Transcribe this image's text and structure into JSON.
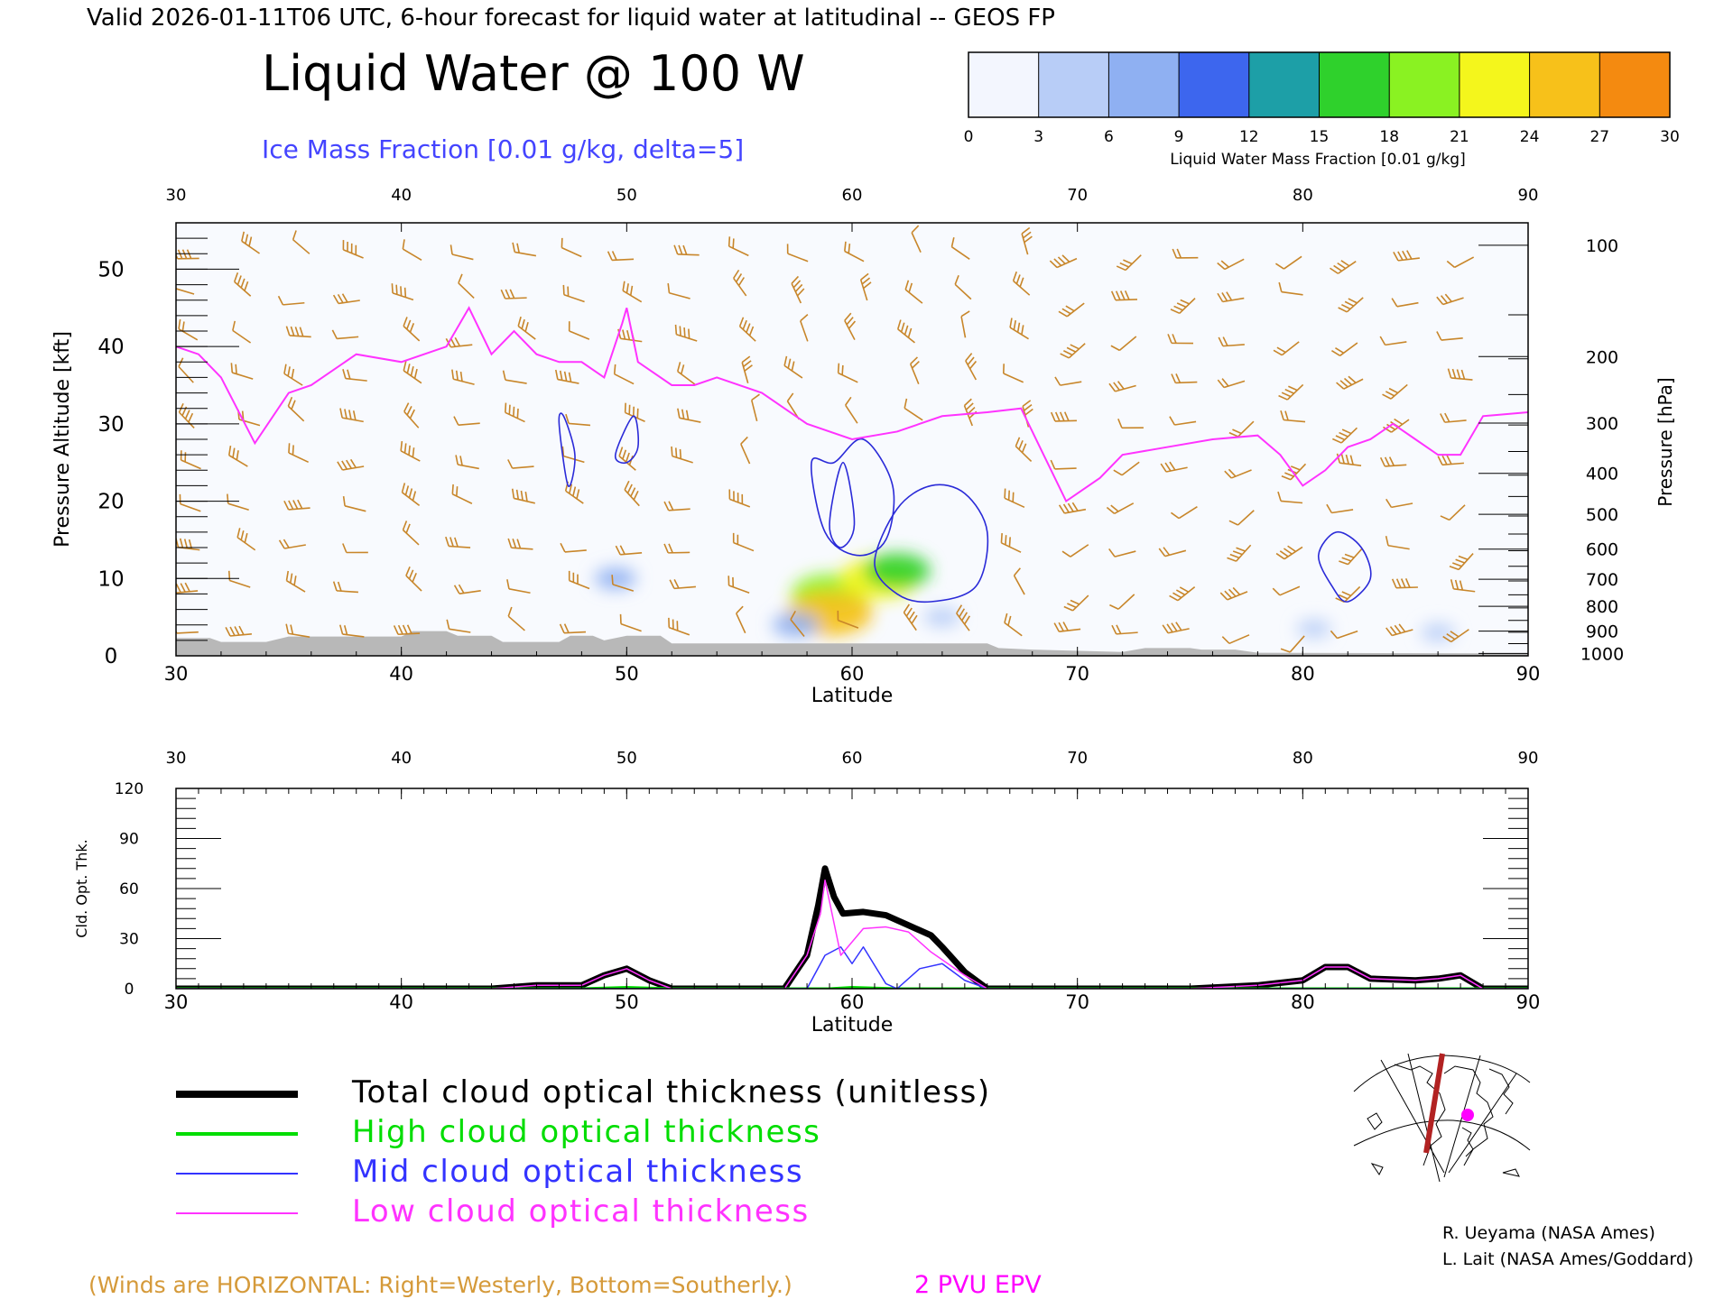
{
  "header": {
    "valid_line": "Valid 2026-01-11T06 UTC, 6-hour forecast for liquid water at latitudinal -- GEOS FP",
    "title": "Liquid Water @ 100 W",
    "subtitle": "Ice Mass Fraction [0.01 g/kg, delta=5]"
  },
  "colorbar": {
    "ticks": [
      "0",
      "3",
      "6",
      "9",
      "12",
      "15",
      "18",
      "21",
      "24",
      "27",
      "30"
    ],
    "label": "Liquid Water Mass Fraction [0.01 g/kg]",
    "colors": [
      "#f3f6fe",
      "#b8cdf7",
      "#8fb0f2",
      "#3d66ee",
      "#1d9fa7",
      "#2fd12c",
      "#8af222",
      "#f4f61c",
      "#f7c11a",
      "#f48a10",
      "#f03a0e"
    ]
  },
  "credits": {
    "line1": "R. Ueyama (NASA Ames)",
    "line2": "L. Lait (NASA Ames/Goddard)"
  },
  "footer": {
    "winds_note": "(Winds are HORIZONTAL: Right=Westerly, Bottom=Southerly.)",
    "epv_label": "2 PVU EPV",
    "winds_color": "#d59a3a",
    "epv_color": "#ff00ff"
  },
  "legend": [
    {
      "label": "Total cloud optical thickness (unitless)",
      "color": "#000000"
    },
    {
      "label": "High cloud optical thickness",
      "color": "#00dd00"
    },
    {
      "label": "Mid cloud optical thickness",
      "color": "#3333ff"
    },
    {
      "label": "Low cloud optical thickness",
      "color": "#ff33ff"
    }
  ],
  "chart_data": [
    {
      "type": "contour-cross-section",
      "xlabel": "Latitude",
      "ylabel": "Pressure Altitude [kft]",
      "right_label": "Pressure [hPa]",
      "xlim": [
        30,
        90
      ],
      "ylim": [
        0,
        56
      ],
      "x_ticks": [
        "30",
        "40",
        "50",
        "60",
        "70",
        "80",
        "90"
      ],
      "y_ticks": [
        "0",
        "10",
        "20",
        "30",
        "40",
        "50"
      ],
      "pressure_ticks": [
        {
          "label": "100",
          "kft": 53.1
        },
        {
          "label": "200",
          "kft": 38.7
        },
        {
          "label": "300",
          "kft": 30.1
        },
        {
          "label": "400",
          "kft": 23.6
        },
        {
          "label": "500",
          "kft": 18.3
        },
        {
          "label": "600",
          "kft": 13.8
        },
        {
          "label": "700",
          "kft": 9.9
        },
        {
          "label": "800",
          "kft": 6.4
        },
        {
          "label": "900",
          "kft": 3.2
        },
        {
          "label": "1000",
          "kft": 0.3
        }
      ],
      "epv_2pvu_line": [
        [
          30,
          40
        ],
        [
          31,
          39
        ],
        [
          32,
          36
        ],
        [
          33.5,
          27.5
        ],
        [
          35,
          34
        ],
        [
          36,
          35
        ],
        [
          38,
          39
        ],
        [
          40,
          38
        ],
        [
          42,
          40
        ],
        [
          43,
          45
        ],
        [
          44,
          39
        ],
        [
          45,
          42
        ],
        [
          46,
          39
        ],
        [
          47,
          38
        ],
        [
          48,
          38
        ],
        [
          49,
          36
        ],
        [
          49.8,
          43
        ],
        [
          50,
          45
        ],
        [
          50.5,
          38
        ],
        [
          52,
          35
        ],
        [
          53,
          35
        ],
        [
          54,
          36
        ],
        [
          56,
          34
        ],
        [
          58,
          30
        ],
        [
          60,
          28
        ],
        [
          62,
          29
        ],
        [
          64,
          31
        ],
        [
          66,
          31.5
        ],
        [
          67.5,
          32
        ],
        [
          68.5,
          26
        ],
        [
          69.5,
          20
        ],
        [
          71,
          23
        ],
        [
          72,
          26
        ],
        [
          74,
          27
        ],
        [
          76,
          28
        ],
        [
          78,
          28.5
        ],
        [
          79,
          26
        ],
        [
          80,
          22
        ],
        [
          81,
          24
        ],
        [
          82,
          27
        ],
        [
          83,
          28
        ],
        [
          84,
          30
        ],
        [
          85,
          28
        ],
        [
          86,
          26
        ],
        [
          87,
          26
        ],
        [
          88,
          31
        ],
        [
          90,
          31.5
        ]
      ],
      "ice_contours": [
        [
          [
            47,
            30
          ],
          [
            47.4,
            22
          ],
          [
            47.7,
            26
          ],
          [
            47.2,
            31
          ]
        ],
        [
          [
            49.5,
            26
          ],
          [
            50.3,
            31
          ],
          [
            50.5,
            27
          ],
          [
            50,
            25
          ]
        ],
        [
          [
            58.2,
            25
          ],
          [
            59.2,
            25
          ],
          [
            60.5,
            28
          ],
          [
            61.8,
            22
          ],
          [
            61.5,
            15
          ],
          [
            60.2,
            13
          ],
          [
            58.8,
            16
          ]
        ],
        [
          [
            59,
            17
          ],
          [
            59.6,
            25
          ],
          [
            60.1,
            17
          ],
          [
            59.5,
            14
          ]
        ],
        [
          [
            62,
            19
          ],
          [
            63.5,
            22
          ],
          [
            65,
            21
          ],
          [
            66,
            16
          ],
          [
            65.5,
            9
          ],
          [
            63.5,
            7
          ],
          [
            62,
            8
          ],
          [
            61,
            12
          ]
        ],
        [
          [
            80.7,
            13
          ],
          [
            81.5,
            16
          ],
          [
            82.6,
            14
          ],
          [
            83,
            10
          ],
          [
            82,
            7
          ],
          [
            81.3,
            9
          ]
        ]
      ],
      "liquid_water_blobs": [
        {
          "lat": 59.0,
          "kft": 8.0,
          "value": 20
        },
        {
          "lat": 59.0,
          "kft": 5.5,
          "value": 24
        },
        {
          "lat": 61.2,
          "kft": 10.0,
          "value": 21
        },
        {
          "lat": 62.0,
          "kft": 11.0,
          "value": 16
        },
        {
          "lat": 57.5,
          "kft": 4.0,
          "value": 8
        },
        {
          "lat": 49.5,
          "kft": 10.0,
          "value": 6
        },
        {
          "lat": 64.0,
          "kft": 5.0,
          "value": 4
        },
        {
          "lat": 80.5,
          "kft": 3.5,
          "value": 3
        },
        {
          "lat": 86.0,
          "kft": 3.0,
          "value": 3
        }
      ]
    },
    {
      "type": "line",
      "xlabel": "Latitude",
      "ylabel": "Cld. Opt. Thk.",
      "xlim": [
        30,
        90
      ],
      "ylim": [
        0,
        120
      ],
      "x_ticks": [
        "30",
        "40",
        "50",
        "60",
        "70",
        "80",
        "90"
      ],
      "y_ticks": [
        "0",
        "30",
        "60",
        "90",
        "120"
      ],
      "series": [
        {
          "name": "Total cloud optical thickness (unitless)",
          "color": "#000000",
          "points": [
            [
              30,
              0
            ],
            [
              44,
              0
            ],
            [
              46,
              2
            ],
            [
              48,
              2
            ],
            [
              49,
              8
            ],
            [
              50,
              12
            ],
            [
              51,
              5
            ],
            [
              52,
              0
            ],
            [
              57,
              0
            ],
            [
              58,
              20
            ],
            [
              58.5,
              50
            ],
            [
              58.8,
              72
            ],
            [
              59.2,
              55
            ],
            [
              59.6,
              45
            ],
            [
              60.5,
              46
            ],
            [
              61.5,
              44
            ],
            [
              62.5,
              38
            ],
            [
              63.5,
              32
            ],
            [
              64,
              25
            ],
            [
              65,
              10
            ],
            [
              66,
              0
            ],
            [
              75,
              0
            ],
            [
              78,
              2
            ],
            [
              80,
              5
            ],
            [
              81,
              13
            ],
            [
              82,
              13
            ],
            [
              83,
              6
            ],
            [
              85,
              5
            ],
            [
              86,
              6
            ],
            [
              87,
              8
            ],
            [
              88,
              0
            ],
            [
              90,
              0
            ]
          ]
        },
        {
          "name": "High cloud optical thickness",
          "color": "#00dd00",
          "points": [
            [
              30,
              0
            ],
            [
              48,
              0
            ],
            [
              50,
              0.8
            ],
            [
              52,
              0
            ],
            [
              59,
              0
            ],
            [
              60,
              0.8
            ],
            [
              62,
              0
            ],
            [
              90,
              0
            ]
          ]
        },
        {
          "name": "Mid cloud optical thickness",
          "color": "#3333ff",
          "points": [
            [
              30,
              0
            ],
            [
              58,
              0
            ],
            [
              58.8,
              20
            ],
            [
              59.5,
              25
            ],
            [
              60,
              15
            ],
            [
              60.5,
              25
            ],
            [
              61.5,
              3
            ],
            [
              62,
              0
            ],
            [
              63,
              12
            ],
            [
              64,
              15
            ],
            [
              65,
              5
            ],
            [
              66,
              0
            ],
            [
              90,
              0
            ]
          ]
        },
        {
          "name": "Low cloud optical thickness",
          "color": "#ff33ff",
          "points": [
            [
              30,
              0
            ],
            [
              44,
              0
            ],
            [
              46,
              2
            ],
            [
              48,
              2
            ],
            [
              49,
              8
            ],
            [
              50,
              12
            ],
            [
              51,
              5
            ],
            [
              52,
              0
            ],
            [
              57,
              0
            ],
            [
              58,
              20
            ],
            [
              58.6,
              45
            ],
            [
              58.8,
              65
            ],
            [
              59.5,
              20
            ],
            [
              60.5,
              36
            ],
            [
              61.5,
              37
            ],
            [
              62.5,
              34
            ],
            [
              63.5,
              22
            ],
            [
              65,
              8
            ],
            [
              66,
              0
            ],
            [
              75,
              0
            ],
            [
              78,
              2
            ],
            [
              80,
              5
            ],
            [
              81,
              13
            ],
            [
              82,
              13
            ],
            [
              83,
              6
            ],
            [
              85,
              5
            ],
            [
              86,
              6
            ],
            [
              87,
              8
            ],
            [
              88,
              0
            ],
            [
              90,
              0
            ]
          ]
        }
      ]
    }
  ]
}
